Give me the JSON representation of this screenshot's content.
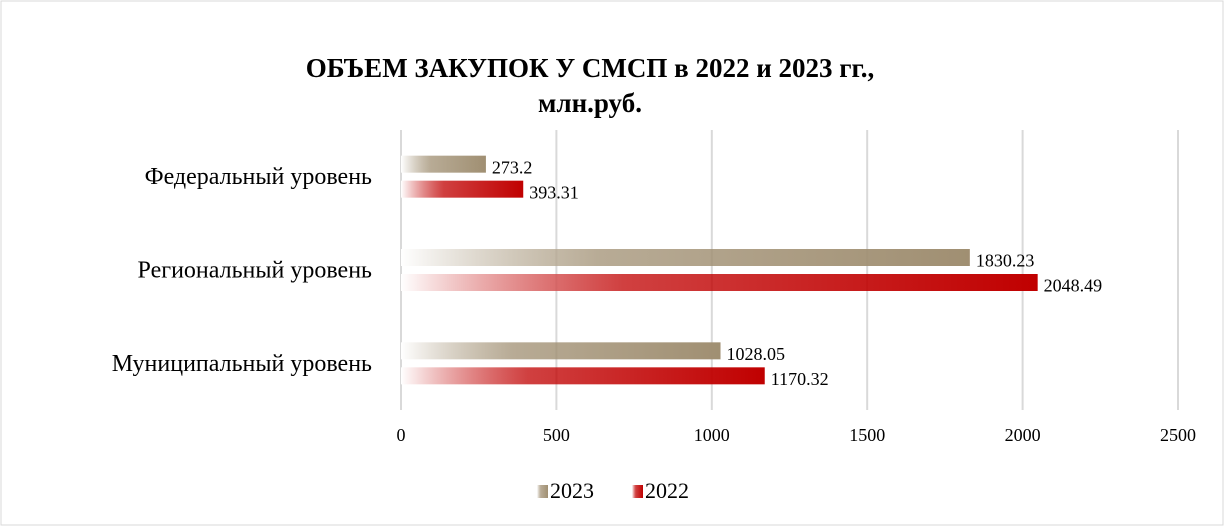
{
  "chart_data": {
    "type": "barh",
    "title": [
      "ОБЪЕМ ЗАКУПОК У СМСП в 2022 и 2023 гг.,",
      "млн.руб."
    ],
    "categories": [
      "Федеральный уровень",
      "Региональный уровень",
      "Муниципальный уровень"
    ],
    "series": [
      {
        "name": "2023",
        "color": "#a08f72",
        "values": [
          273.2,
          1830.23,
          1028.05
        ]
      },
      {
        "name": "2022",
        "color": "#c00000",
        "values": [
          393.31,
          2048.49,
          1170.32
        ]
      }
    ],
    "xlim": [
      0,
      2500
    ],
    "xticks": [
      0,
      500,
      1000,
      1500,
      2000,
      2500
    ],
    "grid": true,
    "legend": "bottom"
  }
}
